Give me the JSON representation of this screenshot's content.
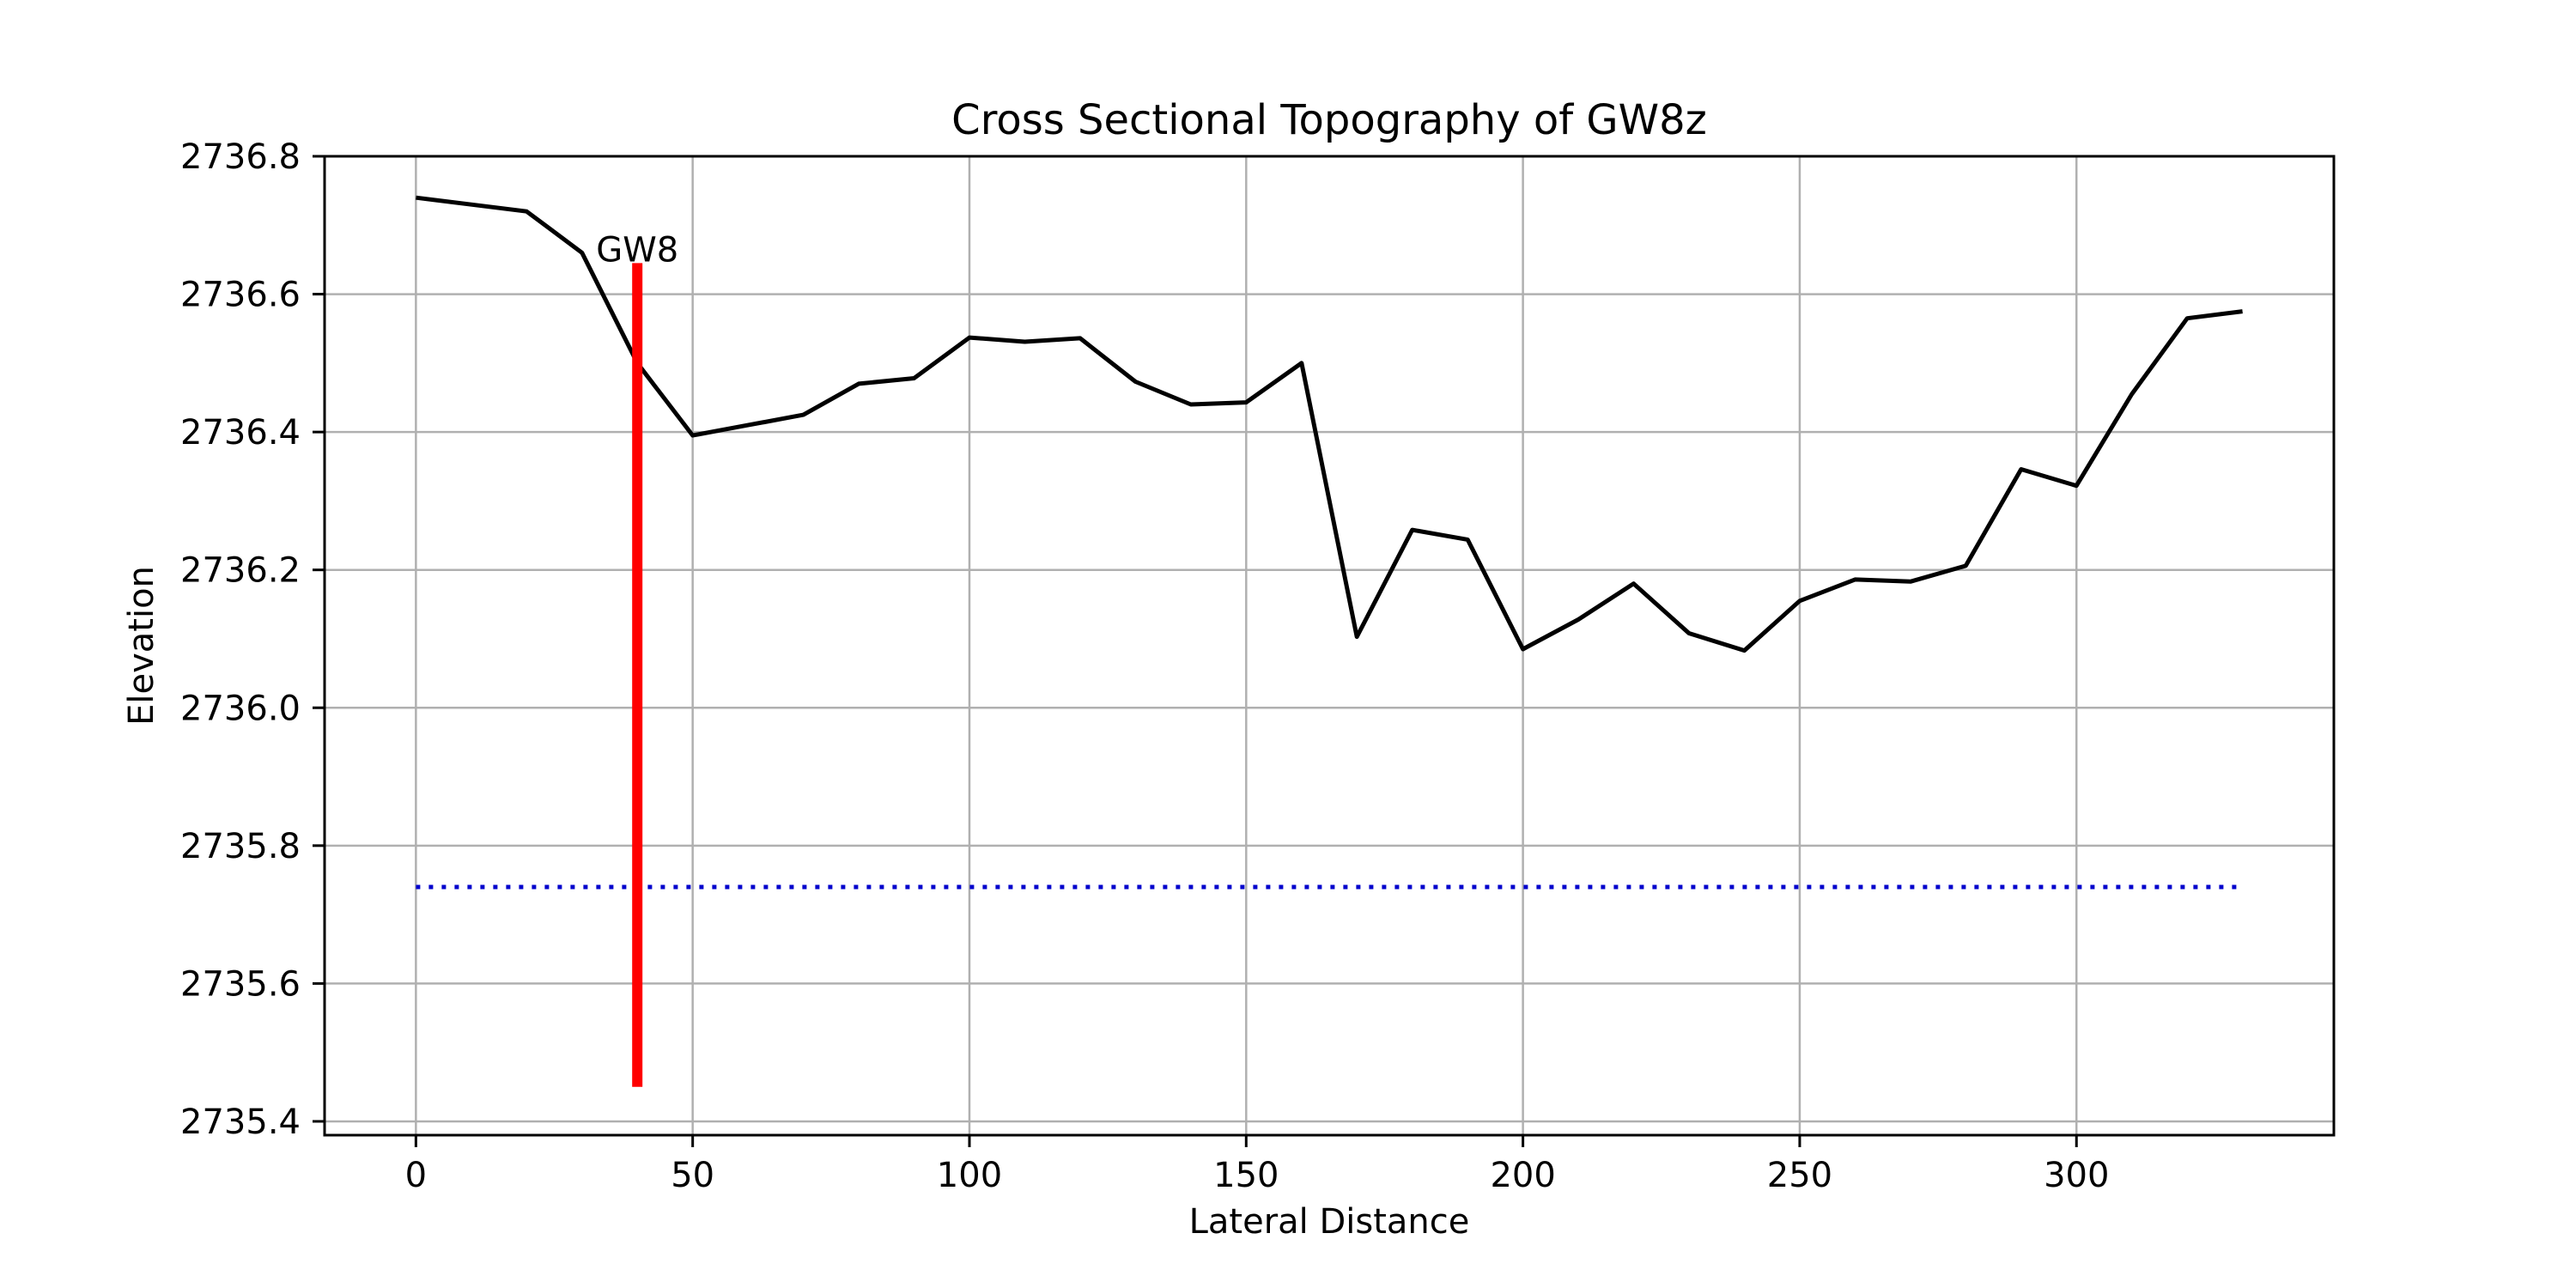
{
  "chart_data": {
    "type": "line",
    "title": "Cross Sectional Topography of GW8z",
    "xlabel": "Lateral Distance",
    "ylabel": "Elevation",
    "xlim": [
      -16.5,
      346.5
    ],
    "ylim": [
      2735.38,
      2736.8
    ],
    "xticks": [
      0,
      50,
      100,
      150,
      200,
      250,
      300
    ],
    "yticks": [
      2735.4,
      2735.6,
      2735.8,
      2736.0,
      2736.2,
      2736.4,
      2736.6,
      2736.8
    ],
    "xtick_labels": [
      "0",
      "50",
      "100",
      "150",
      "200",
      "250",
      "300"
    ],
    "ytick_labels": [
      "2735.4",
      "2735.6",
      "2735.8",
      "2736.0",
      "2736.2",
      "2736.4",
      "2736.6",
      "2736.8"
    ],
    "grid": true,
    "series": [
      {
        "color": "#000000",
        "style": "solid",
        "x": [
          0,
          10,
          20,
          30,
          40,
          50,
          60,
          70,
          80,
          90,
          100,
          110,
          120,
          130,
          140,
          150,
          160,
          170,
          180,
          190,
          200,
          210,
          220,
          230,
          240,
          250,
          260,
          270,
          280,
          290,
          300,
          310,
          320,
          330
        ],
        "y": [
          2736.74,
          2736.73,
          2736.72,
          2736.66,
          2736.5,
          2736.395,
          2736.41,
          2736.425,
          2736.47,
          2736.478,
          2736.537,
          2736.531,
          2736.536,
          2736.473,
          2736.44,
          2736.443,
          2736.5,
          2736.103,
          2736.258,
          2736.244,
          2736.085,
          2736.128,
          2736.18,
          2736.108,
          2736.083,
          2736.155,
          2736.186,
          2736.183,
          2736.206,
          2736.346,
          2736.322,
          2736.455,
          2736.565,
          2736.575
        ]
      },
      {
        "color": "#0000cc",
        "style": "dotted",
        "x": [
          0,
          330
        ],
        "y": [
          2735.74,
          2735.74
        ]
      },
      {
        "color": "#ff0000",
        "style": "solid-thick",
        "x": [
          40,
          40
        ],
        "y": [
          2736.645,
          2735.45
        ]
      }
    ],
    "annotations": [
      {
        "text": "GW8",
        "x": 40,
        "y": 2736.66
      }
    ]
  }
}
